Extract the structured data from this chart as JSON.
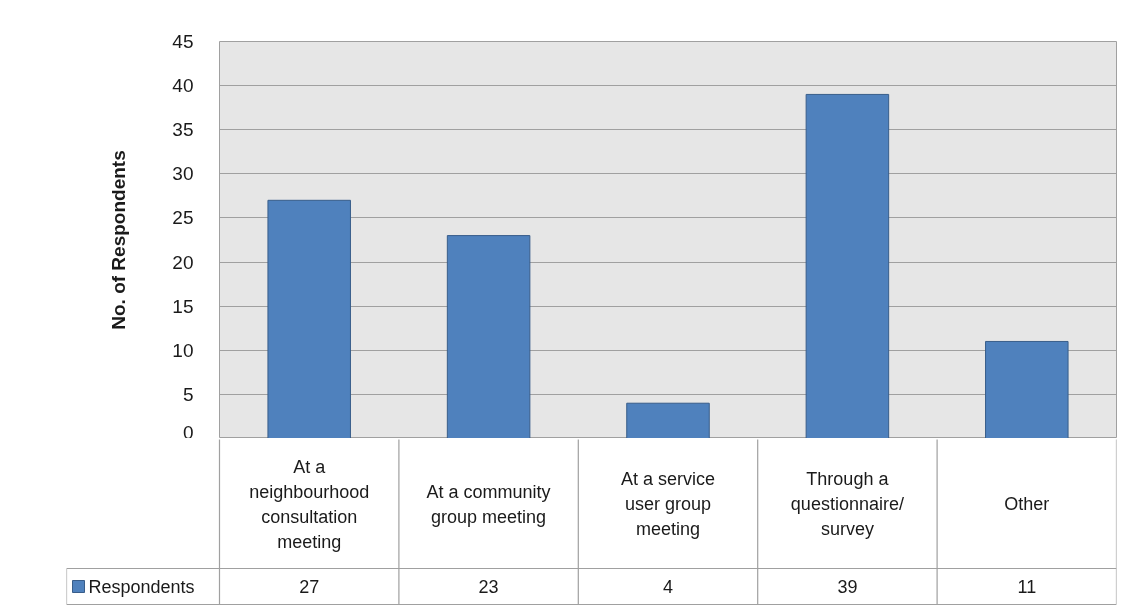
{
  "chart_data": {
    "type": "bar",
    "ylabel": "No. of Respondents",
    "categories": [
      "At a neighbourhood consultation meeting",
      "At a community group meeting",
      "At a service user group meeting",
      "Through a questionnaire/ survey",
      "Other"
    ],
    "series": [
      {
        "name": "Respondents",
        "color": "#4f81bd",
        "values": [
          27,
          23,
          4,
          39,
          11
        ]
      }
    ],
    "ylim": [
      0,
      45
    ],
    "yticks": [
      0,
      5,
      10,
      15,
      20,
      25,
      30,
      35,
      40,
      45
    ],
    "grid": "y",
    "legend": "bottom left",
    "data_labels": true
  }
}
